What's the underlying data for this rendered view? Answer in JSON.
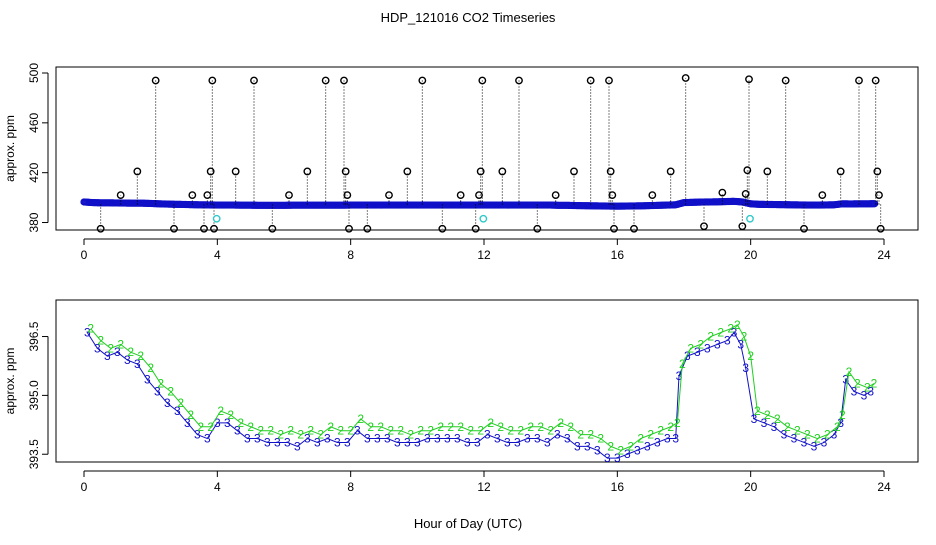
{
  "title": "HDP_121016  CO2 Timeseries",
  "xlabel": "Hour of Day (UTC)",
  "chart_data": [
    {
      "type": "scatter",
      "name": "top-panel",
      "ylabel": "approx. ppm",
      "xlim": [
        0,
        24
      ],
      "ylim": [
        374,
        500
      ],
      "xticks": [
        0,
        4,
        8,
        12,
        16,
        20,
        24
      ],
      "yticks": [
        380,
        420,
        460,
        500
      ],
      "baseline_series": {
        "name": "baseline",
        "color": "#1010c8",
        "marker": "circle",
        "x": [
          0,
          0.25,
          0.5,
          0.75,
          1,
          1.25,
          1.5,
          1.75,
          2,
          2.25,
          2.5,
          2.75,
          3,
          3.25,
          3.5,
          3.75,
          4,
          4.25,
          4.5,
          4.75,
          5,
          5.25,
          5.5,
          5.75,
          6,
          6.25,
          6.5,
          6.75,
          7,
          7.25,
          7.5,
          7.75,
          8,
          8.25,
          8.5,
          8.75,
          9,
          9.25,
          9.5,
          9.75,
          10,
          10.25,
          10.5,
          10.75,
          11,
          11.25,
          11.5,
          11.75,
          12,
          12.25,
          12.5,
          12.75,
          13,
          13.25,
          13.5,
          13.75,
          14,
          14.25,
          14.5,
          14.75,
          15,
          15.25,
          15.5,
          15.75,
          16,
          16.25,
          16.5,
          16.75,
          17,
          17.25,
          17.5,
          17.75,
          18,
          18.25,
          18.5,
          18.75,
          19,
          19.25,
          19.5,
          19.75,
          20,
          20.25,
          20.5,
          20.75,
          21,
          21.25,
          21.5,
          21.75,
          22,
          22.25,
          22.5,
          22.75,
          23,
          23.25,
          23.5,
          23.75
        ],
        "y": [
          396.5,
          396,
          395.8,
          395.8,
          395.7,
          395.6,
          395.5,
          395.5,
          395.3,
          395,
          394.8,
          394.6,
          394.5,
          394.3,
          394.2,
          394.1,
          394,
          394,
          394,
          393.9,
          393.9,
          393.8,
          393.8,
          393.8,
          393.8,
          393.9,
          393.9,
          393.9,
          393.9,
          393.9,
          393.9,
          393.9,
          394,
          394,
          394,
          394,
          394,
          394,
          394,
          394,
          394,
          394,
          394,
          394,
          394,
          394,
          394,
          394,
          394,
          394,
          394,
          394,
          394,
          394,
          394,
          394,
          394,
          393.8,
          393.8,
          393.6,
          393.5,
          393.4,
          393.3,
          393.2,
          393.1,
          393.2,
          393.3,
          393.4,
          393.6,
          393.8,
          394,
          394.2,
          396,
          396.2,
          396.4,
          396.5,
          396.6,
          396.8,
          397,
          396.5,
          395,
          394.6,
          394.5,
          394.4,
          394.3,
          394.2,
          394.1,
          394,
          394,
          394.1,
          394.2,
          395,
          394.9,
          395,
          395,
          395.1
        ]
      },
      "spike_series": {
        "name": "spikes",
        "color": "#000000",
        "marker": "circle",
        "x": [
          0.5,
          1.1,
          1.6,
          2.15,
          2.7,
          3.25,
          3.6,
          3.7,
          3.8,
          3.85,
          3.9,
          4.55,
          5.1,
          5.65,
          6.15,
          6.7,
          7.25,
          7.8,
          7.85,
          7.9,
          7.95,
          8.5,
          9.15,
          9.7,
          10.15,
          10.75,
          11.3,
          11.75,
          11.85,
          11.9,
          11.95,
          12.55,
          13.05,
          13.6,
          14.15,
          14.7,
          15.2,
          15.75,
          15.8,
          15.85,
          15.9,
          16.5,
          17.05,
          17.6,
          18.05,
          18.6,
          19.15,
          19.75,
          19.85,
          19.9,
          19.95,
          20.5,
          21.05,
          21.6,
          22.15,
          22.7,
          23.25,
          23.75,
          23.8,
          23.85,
          23.9
        ],
        "y": [
          375,
          402,
          421,
          494,
          375,
          402,
          375,
          402,
          421,
          494,
          375,
          421,
          494,
          375,
          402,
          421,
          494,
          494,
          421,
          402,
          375,
          375,
          402,
          421,
          494,
          375,
          402,
          375,
          402,
          421,
          494,
          421,
          494,
          375,
          402,
          421,
          494,
          494,
          421,
          402,
          375,
          375,
          402,
          421,
          496,
          377,
          404,
          377,
          403,
          422,
          495,
          421,
          494,
          375,
          402,
          421,
          494,
          494,
          421,
          402,
          375
        ]
      },
      "highlight_series": {
        "name": "highlight",
        "color": "#30c8c8",
        "marker": "circle",
        "x": [
          3.98,
          11.98,
          19.98
        ],
        "y": [
          383,
          383,
          383
        ]
      }
    },
    {
      "type": "scatter",
      "name": "bottom-panel",
      "ylabel": "approx. ppm",
      "xlim": [
        0,
        24
      ],
      "ylim": [
        393.2,
        397.1
      ],
      "xticks": [
        0,
        4,
        8,
        12,
        16,
        20,
        24
      ],
      "yticks": [
        393.5,
        395.0,
        396.5
      ],
      "series": [
        {
          "name": "3",
          "label": "3",
          "color": "#1010c8",
          "x": [
            0.1,
            0.4,
            0.7,
            1,
            1.3,
            1.6,
            1.9,
            2.2,
            2.5,
            2.8,
            3.1,
            3.4,
            3.7,
            4,
            4.3,
            4.6,
            4.9,
            5.2,
            5.5,
            5.8,
            6.1,
            6.4,
            6.7,
            7,
            7.3,
            7.6,
            7.9,
            8.2,
            8.5,
            8.8,
            9.1,
            9.4,
            9.7,
            10,
            10.3,
            10.6,
            10.9,
            11.2,
            11.5,
            11.8,
            12.1,
            12.4,
            12.7,
            13,
            13.3,
            13.6,
            13.9,
            14.2,
            14.5,
            14.8,
            15.1,
            15.4,
            15.7,
            16,
            16.3,
            16.6,
            16.9,
            17.2,
            17.5,
            17.75,
            17.85,
            18.1,
            18.4,
            18.7,
            19,
            19.3,
            19.5,
            19.7,
            19.85,
            20.1,
            20.4,
            20.7,
            21,
            21.3,
            21.6,
            21.9,
            22.2,
            22.5,
            22.7,
            22.85,
            23.1,
            23.4,
            23.6
          ],
          "y": [
            396.6,
            396.2,
            396,
            396.1,
            395.9,
            395.8,
            395.4,
            395.1,
            394.8,
            394.6,
            394.3,
            394,
            393.9,
            394.3,
            394.3,
            394.1,
            393.9,
            393.9,
            393.8,
            393.8,
            393.8,
            393.7,
            393.9,
            393.8,
            393.9,
            393.8,
            393.8,
            394.1,
            393.9,
            393.9,
            393.9,
            393.8,
            393.8,
            393.8,
            393.9,
            393.9,
            393.9,
            393.9,
            393.8,
            393.8,
            394,
            393.9,
            393.8,
            393.8,
            393.9,
            393.9,
            393.8,
            394,
            393.9,
            393.7,
            393.7,
            393.6,
            393.4,
            393.4,
            393.5,
            393.6,
            393.7,
            393.8,
            393.9,
            393.9,
            395.5,
            396,
            396.1,
            396.2,
            396.3,
            396.4,
            396.6,
            396.3,
            395.7,
            394.4,
            394.3,
            394.2,
            394,
            393.9,
            393.8,
            393.7,
            393.8,
            394,
            394.3,
            395.4,
            395.1,
            395,
            395.1
          ]
        },
        {
          "name": "2",
          "label": "2",
          "color": "#20d020",
          "x": [
            0.2,
            0.5,
            0.8,
            1.1,
            1.4,
            1.7,
            2,
            2.3,
            2.6,
            2.9,
            3.2,
            3.5,
            3.8,
            4.1,
            4.4,
            4.7,
            5,
            5.3,
            5.6,
            5.9,
            6.2,
            6.5,
            6.8,
            7.1,
            7.4,
            7.7,
            8,
            8.3,
            8.6,
            8.9,
            9.2,
            9.5,
            9.8,
            10.1,
            10.4,
            10.7,
            11,
            11.3,
            11.6,
            11.9,
            12.2,
            12.5,
            12.8,
            13.1,
            13.4,
            13.7,
            14,
            14.3,
            14.6,
            14.9,
            15.2,
            15.5,
            15.8,
            16.1,
            16.4,
            16.7,
            17,
            17.3,
            17.6,
            17.8,
            17.95,
            18.2,
            18.5,
            18.8,
            19.1,
            19.4,
            19.6,
            19.8,
            20,
            20.2,
            20.5,
            20.8,
            21.1,
            21.4,
            21.7,
            22,
            22.3,
            22.6,
            22.75,
            22.95,
            23.2,
            23.5,
            23.7
          ],
          "y": [
            396.7,
            396.4,
            396.2,
            396.3,
            396.1,
            396,
            395.7,
            395.3,
            395.1,
            394.8,
            394.5,
            394.2,
            394.2,
            394.6,
            394.5,
            394.3,
            394.2,
            394.1,
            394.1,
            394,
            394.1,
            394,
            394.1,
            394,
            394.2,
            394.1,
            394.1,
            394.4,
            394.2,
            394.2,
            394.1,
            394.1,
            394,
            394.1,
            394.1,
            394.2,
            394.2,
            394.2,
            394.1,
            394.1,
            394.3,
            394.2,
            394.1,
            394.1,
            394.2,
            394.2,
            394.1,
            394.3,
            394.2,
            394,
            394,
            393.9,
            393.7,
            393.6,
            393.7,
            393.9,
            394,
            394.1,
            394.2,
            394.3,
            395.8,
            396.2,
            396.3,
            396.5,
            396.6,
            396.7,
            396.8,
            396.5,
            396,
            394.6,
            394.5,
            394.4,
            394.2,
            394.1,
            394,
            393.9,
            394,
            394.2,
            394.5,
            395.6,
            395.3,
            395.2,
            395.3
          ]
        }
      ]
    }
  ]
}
